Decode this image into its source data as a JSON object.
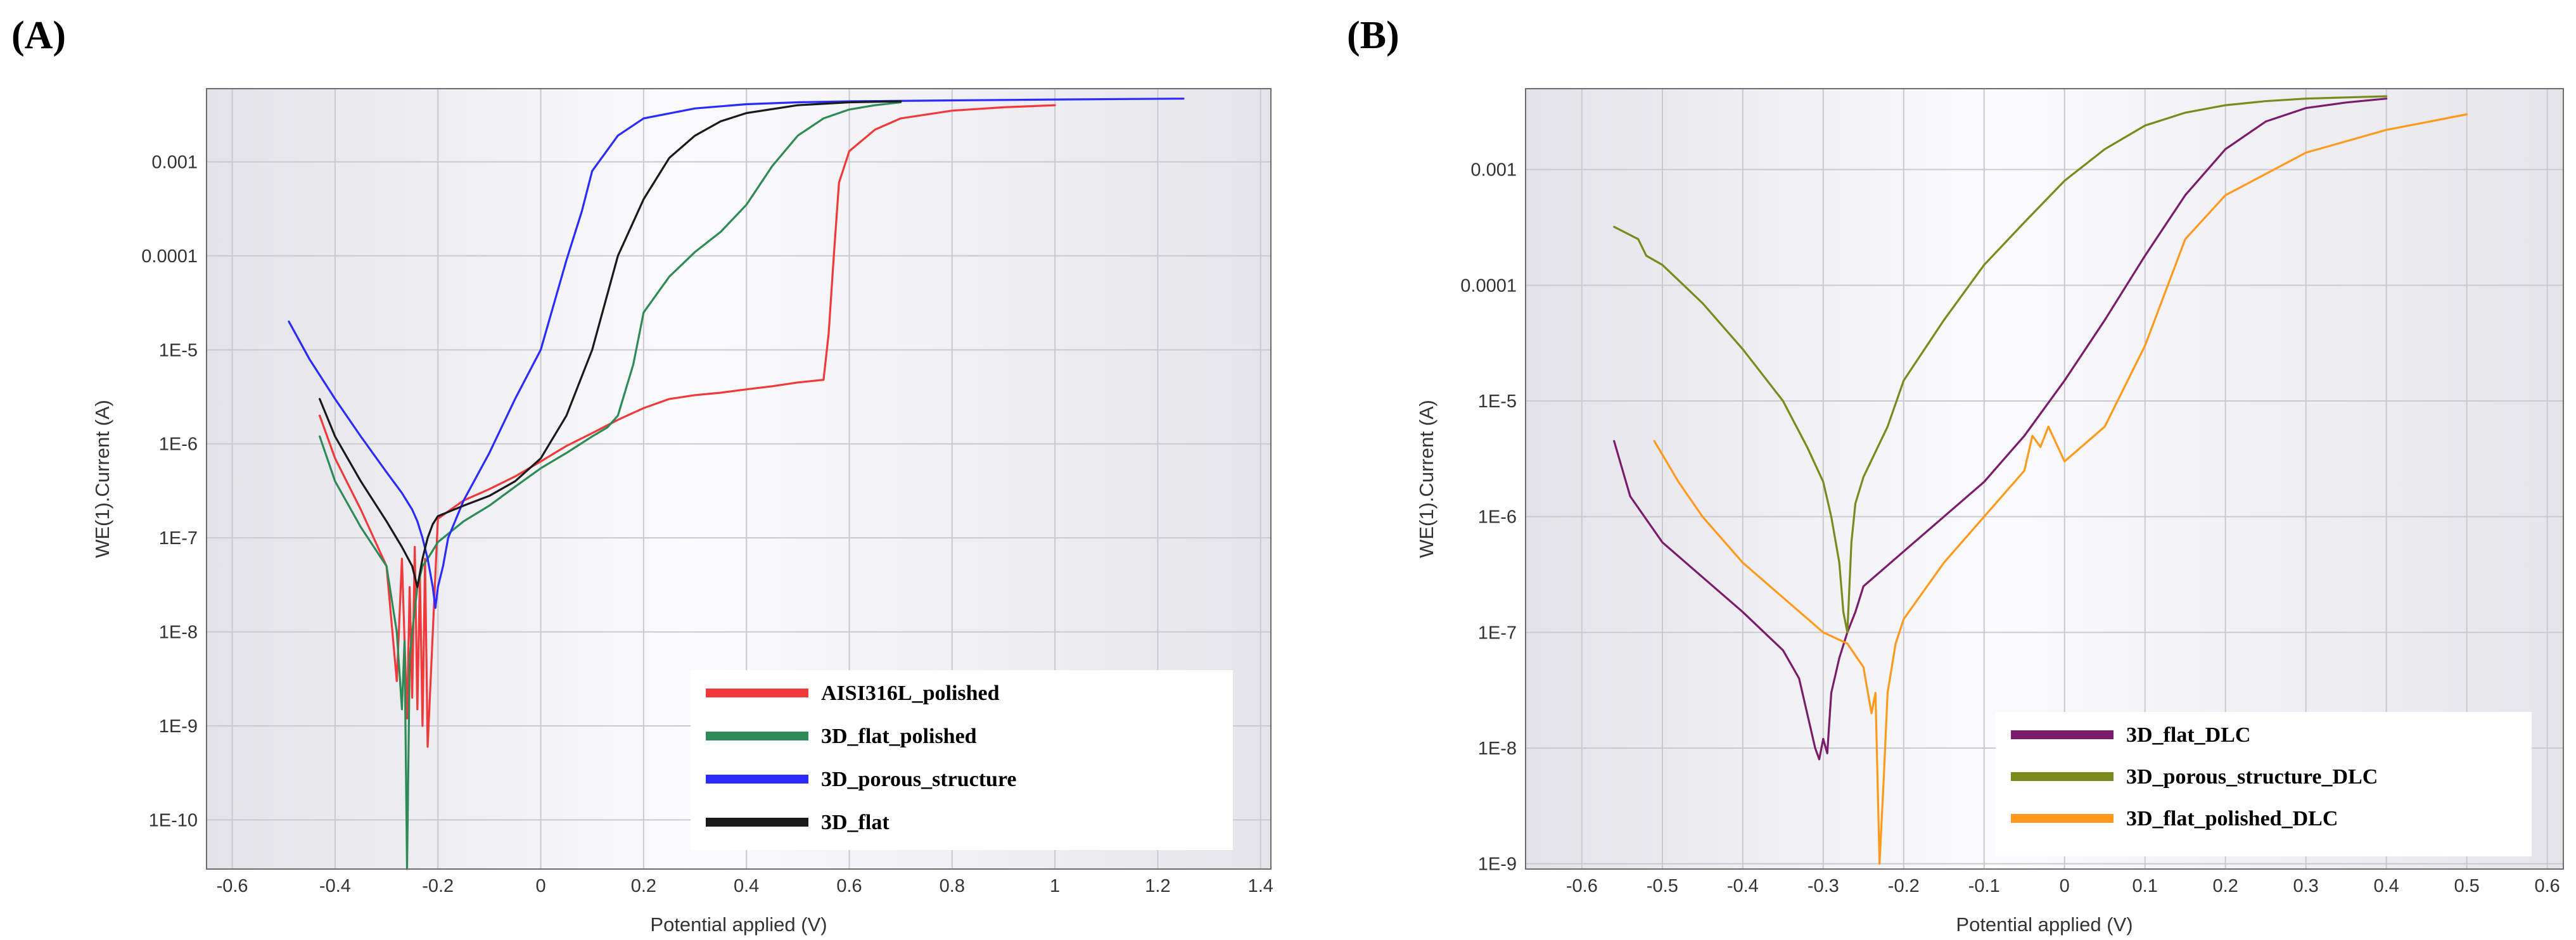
{
  "chart_data": [
    {
      "panel": "(A)",
      "type": "line",
      "xlabel": "Potential applied (V)",
      "ylabel": "WE(1).Current (A)",
      "y_scale": "log",
      "xlim": [
        -0.65,
        1.42
      ],
      "ylim": [
        3e-11,
        0.006
      ],
      "x_ticks": [
        "-0.6",
        "-0.4",
        "-0.2",
        "0",
        "0.2",
        "0.4",
        "0.6",
        "0.8",
        "1",
        "1.2",
        "1.4"
      ],
      "x_tick_values": [
        -0.6,
        -0.4,
        -0.2,
        0,
        0.2,
        0.4,
        0.6,
        0.8,
        1,
        1.2,
        1.4
      ],
      "y_ticks": [
        "1E-10",
        "1E-9",
        "1E-8",
        "1E-7",
        "1E-6",
        "1E-5",
        "0.0001",
        "0.001"
      ],
      "y_tick_values": [
        1e-10,
        1e-09,
        1e-08,
        1e-07,
        1e-06,
        1e-05,
        0.0001,
        0.001
      ],
      "legend_position": "bottom-right",
      "series": [
        {
          "name": "AISI316L_polished",
          "color": "#f0393a",
          "x": [
            -0.43,
            -0.4,
            -0.35,
            -0.3,
            -0.28,
            -0.27,
            -0.26,
            -0.255,
            -0.25,
            -0.245,
            -0.24,
            -0.235,
            -0.23,
            -0.225,
            -0.22,
            -0.2,
            -0.15,
            -0.1,
            -0.05,
            0,
            0.05,
            0.1,
            0.15,
            0.2,
            0.25,
            0.3,
            0.35,
            0.4,
            0.45,
            0.5,
            0.55,
            0.56,
            0.57,
            0.58,
            0.6,
            0.65,
            0.7,
            0.8,
            0.9,
            1.0
          ],
          "y": [
            2e-06,
            7e-07,
            2e-07,
            5e-08,
            3e-09,
            6e-08,
            1.2e-09,
            3e-08,
            2e-09,
            8e-08,
            1.5e-09,
            4e-08,
            1e-09,
            6e-08,
            6e-10,
            1.6e-07,
            2.5e-07,
            3.3e-07,
            4.5e-07,
            6.5e-07,
            9.5e-07,
            1.3e-06,
            1.8e-06,
            2.4e-06,
            3e-06,
            3.3e-06,
            3.5e-06,
            3.8e-06,
            4.1e-06,
            4.5e-06,
            4.8e-06,
            1.5e-05,
            0.0001,
            0.0006,
            0.0013,
            0.0022,
            0.0029,
            0.0035,
            0.0038,
            0.004
          ]
        },
        {
          "name": "3D_flat_polished",
          "color": "#2e8b57",
          "x": [
            -0.43,
            -0.4,
            -0.35,
            -0.3,
            -0.28,
            -0.27,
            -0.265,
            -0.26,
            -0.255,
            -0.25,
            -0.24,
            -0.23,
            -0.22,
            -0.2,
            -0.15,
            -0.1,
            -0.05,
            0,
            0.05,
            0.1,
            0.13,
            0.15,
            0.18,
            0.2,
            0.25,
            0.3,
            0.35,
            0.4,
            0.45,
            0.5,
            0.55,
            0.6,
            0.65,
            0.7
          ],
          "y": [
            1.2e-06,
            4e-07,
            1.3e-07,
            5e-08,
            1e-08,
            1.5e-09,
            8e-09,
            3e-11,
            5e-09,
            1e-08,
            3e-08,
            5e-08,
            6e-08,
            9e-08,
            1.5e-07,
            2.2e-07,
            3.5e-07,
            5.5e-07,
            8e-07,
            1.2e-06,
            1.5e-06,
            2e-06,
            7e-06,
            2.5e-05,
            6e-05,
            0.00011,
            0.00018,
            0.00035,
            0.0009,
            0.0019,
            0.0029,
            0.0036,
            0.004,
            0.0043
          ]
        },
        {
          "name": "3D_porous_structure",
          "color": "#2b2bff",
          "x": [
            -0.49,
            -0.45,
            -0.4,
            -0.35,
            -0.3,
            -0.27,
            -0.25,
            -0.24,
            -0.23,
            -0.22,
            -0.21,
            -0.205,
            -0.2,
            -0.19,
            -0.18,
            -0.15,
            -0.1,
            -0.05,
            0,
            0.05,
            0.08,
            0.1,
            0.15,
            0.2,
            0.3,
            0.4,
            0.5,
            0.6,
            0.8,
            1.0,
            1.25
          ],
          "y": [
            2e-05,
            8e-06,
            3e-06,
            1.2e-06,
            5e-07,
            3e-07,
            2e-07,
            1.5e-07,
            1e-07,
            6e-08,
            3e-08,
            1.8e-08,
            3e-08,
            5e-08,
            1e-07,
            2.5e-07,
            8e-07,
            3e-06,
            1e-05,
            9e-05,
            0.0003,
            0.0008,
            0.0019,
            0.0029,
            0.0037,
            0.0041,
            0.0043,
            0.0044,
            0.0045,
            0.0046,
            0.0047
          ]
        },
        {
          "name": "3D_flat",
          "color": "#1a1a1a",
          "x": [
            -0.43,
            -0.4,
            -0.35,
            -0.3,
            -0.27,
            -0.25,
            -0.24,
            -0.23,
            -0.22,
            -0.21,
            -0.2,
            -0.15,
            -0.1,
            -0.05,
            0,
            0.05,
            0.1,
            0.15,
            0.2,
            0.25,
            0.3,
            0.35,
            0.4,
            0.5,
            0.6,
            0.7
          ],
          "y": [
            3e-06,
            1.2e-06,
            4e-07,
            1.5e-07,
            8e-08,
            5e-08,
            3e-08,
            6e-08,
            1e-07,
            1.4e-07,
            1.7e-07,
            2.2e-07,
            2.8e-07,
            4e-07,
            7e-07,
            2e-06,
            1e-05,
            0.0001,
            0.0004,
            0.0011,
            0.0019,
            0.0027,
            0.0033,
            0.004,
            0.0043,
            0.0044
          ]
        }
      ]
    },
    {
      "panel": "(B)",
      "type": "line",
      "xlabel": "Potential applied (V)",
      "ylabel": "WE(1).Current (A)",
      "y_scale": "log",
      "xlim": [
        -0.67,
        0.62
      ],
      "ylim": [
        9e-10,
        0.005
      ],
      "x_ticks": [
        "-0.6",
        "-0.5",
        "-0.4",
        "-0.3",
        "-0.2",
        "-0.1",
        "0",
        "0.1",
        "0.2",
        "0.3",
        "0.4",
        "0.5",
        "0.6"
      ],
      "x_tick_values": [
        -0.6,
        -0.5,
        -0.4,
        -0.3,
        -0.2,
        -0.1,
        0,
        0.1,
        0.2,
        0.3,
        0.4,
        0.5,
        0.6
      ],
      "y_ticks": [
        "1E-9",
        "1E-8",
        "1E-7",
        "1E-6",
        "1E-5",
        "0.0001",
        "0.001"
      ],
      "y_tick_values": [
        1e-09,
        1e-08,
        1e-07,
        1e-06,
        1e-05,
        0.0001,
        0.001
      ],
      "legend_position": "bottom-right",
      "series": [
        {
          "name": "3D_flat_DLC",
          "color": "#7b1b6b",
          "x": [
            -0.56,
            -0.54,
            -0.5,
            -0.45,
            -0.4,
            -0.35,
            -0.33,
            -0.31,
            -0.305,
            -0.3,
            -0.295,
            -0.29,
            -0.28,
            -0.27,
            -0.26,
            -0.25,
            -0.2,
            -0.15,
            -0.1,
            -0.05,
            0,
            0.05,
            0.1,
            0.15,
            0.2,
            0.25,
            0.3,
            0.35,
            0.4
          ],
          "y": [
            4.5e-06,
            1.5e-06,
            6e-07,
            3e-07,
            1.5e-07,
            7e-08,
            4e-08,
            1e-08,
            8e-09,
            1.2e-08,
            9e-09,
            3e-08,
            6e-08,
            1e-07,
            1.5e-07,
            2.5e-07,
            5e-07,
            1e-06,
            2e-06,
            5e-06,
            1.5e-05,
            5e-05,
            0.00018,
            0.0006,
            0.0015,
            0.0026,
            0.0034,
            0.0038,
            0.0041
          ]
        },
        {
          "name": "3D_porous_structure_DLC",
          "color": "#7a8a1c",
          "x": [
            -0.56,
            -0.53,
            -0.52,
            -0.5,
            -0.45,
            -0.4,
            -0.35,
            -0.32,
            -0.3,
            -0.29,
            -0.28,
            -0.275,
            -0.27,
            -0.265,
            -0.26,
            -0.25,
            -0.22,
            -0.2,
            -0.15,
            -0.1,
            -0.05,
            0,
            0.05,
            0.1,
            0.15,
            0.2,
            0.25,
            0.3,
            0.35,
            0.4
          ],
          "y": [
            0.00032,
            0.00025,
            0.00018,
            0.00015,
            7e-05,
            2.8e-05,
            1e-05,
            4e-06,
            2e-06,
            1e-06,
            4e-07,
            1.5e-07,
            1e-07,
            6e-07,
            1.3e-06,
            2.2e-06,
            6e-06,
            1.5e-05,
            5e-05,
            0.00015,
            0.00035,
            0.0008,
            0.0015,
            0.0024,
            0.0031,
            0.0036,
            0.0039,
            0.0041,
            0.0042,
            0.0043
          ]
        },
        {
          "name": "3D_flat_polished_DLC",
          "color": "#ff9a1e",
          "x": [
            -0.51,
            -0.48,
            -0.45,
            -0.4,
            -0.35,
            -0.3,
            -0.27,
            -0.25,
            -0.24,
            -0.235,
            -0.23,
            -0.225,
            -0.22,
            -0.21,
            -0.2,
            -0.15,
            -0.1,
            -0.05,
            -0.04,
            -0.03,
            -0.02,
            0,
            0.05,
            0.1,
            0.15,
            0.2,
            0.3,
            0.4,
            0.5
          ],
          "y": [
            4.5e-06,
            2e-06,
            1e-06,
            4e-07,
            2e-07,
            1e-07,
            8e-08,
            5e-08,
            2e-08,
            3e-08,
            1e-09,
            5e-09,
            3e-08,
            8e-08,
            1.3e-07,
            4e-07,
            1e-06,
            2.5e-06,
            5e-06,
            4e-06,
            6e-06,
            3e-06,
            6e-06,
            3e-05,
            0.00025,
            0.0006,
            0.0014,
            0.0022,
            0.003
          ]
        }
      ]
    }
  ]
}
